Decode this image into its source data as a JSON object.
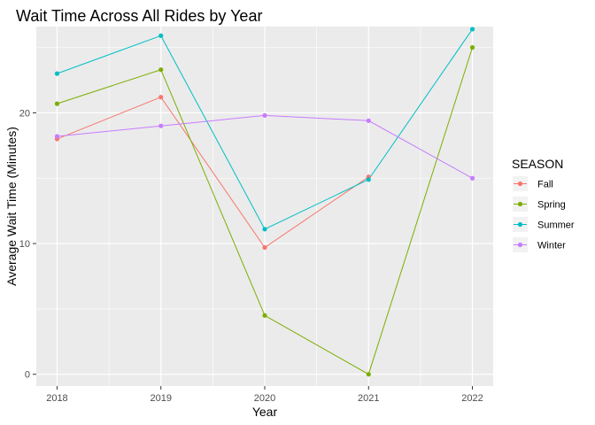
{
  "chart_data": {
    "type": "line",
    "title": "Wait Time Across All Rides by Year",
    "xlabel": "Year",
    "ylabel": "Average Wait Time (Minutes)",
    "x": [
      2018,
      2019,
      2020,
      2021,
      2022
    ],
    "x_tick_labels": [
      "2018",
      "2019",
      "2020",
      "2021",
      "2022"
    ],
    "xlim": [
      2017.8,
      2022.2
    ],
    "y_ticks": [
      0,
      10,
      20
    ],
    "y_tick_labels": [
      "0",
      "10",
      "20"
    ],
    "ylim": [
      -0.9,
      26.6
    ],
    "grid": true,
    "legend": {
      "title": "SEASON",
      "position": "right"
    },
    "series": [
      {
        "name": "Fall",
        "color": "#F8766D",
        "values": [
          18.0,
          21.2,
          9.7,
          15.1,
          null
        ]
      },
      {
        "name": "Spring",
        "color": "#7CAE00",
        "values": [
          20.7,
          23.3,
          4.5,
          0.0,
          25.0
        ]
      },
      {
        "name": "Summer",
        "color": "#00BFC4",
        "values": [
          23.0,
          25.9,
          11.1,
          14.9,
          26.4
        ]
      },
      {
        "name": "Winter",
        "color": "#C77CFF",
        "values": [
          18.2,
          19.0,
          19.8,
          19.4,
          15.0
        ]
      }
    ]
  }
}
